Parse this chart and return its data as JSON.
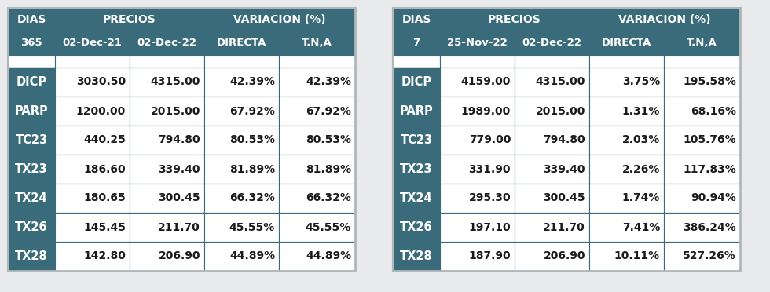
{
  "table1": {
    "header2": [
      "365",
      "02-Dec-21",
      "02-Dec-22",
      "DIRECTA",
      "T.N,A"
    ],
    "col_labels": [
      "DICP",
      "PARP",
      "TC23",
      "TX23",
      "TX24",
      "TX26",
      "TX28"
    ],
    "col1": [
      "3030.50",
      "1200.00",
      "440.25",
      "186.60",
      "180.65",
      "145.45",
      "142.80"
    ],
    "col2": [
      "4315.00",
      "2015.00",
      "794.80",
      "339.40",
      "300.45",
      "211.70",
      "206.90"
    ],
    "col3": [
      "42.39%",
      "67.92%",
      "80.53%",
      "81.89%",
      "66.32%",
      "45.55%",
      "44.89%"
    ],
    "col4": [
      "42.39%",
      "67.92%",
      "80.53%",
      "81.89%",
      "66.32%",
      "45.55%",
      "44.89%"
    ]
  },
  "table2": {
    "header2": [
      "7",
      "25-Nov-22",
      "02-Dec-22",
      "DIRECTA",
      "T.N,A"
    ],
    "col_labels": [
      "DICP",
      "PARP",
      "TC23",
      "TX23",
      "TX24",
      "TX26",
      "TX28"
    ],
    "col1": [
      "4159.00",
      "1989.00",
      "779.00",
      "331.90",
      "295.30",
      "197.10",
      "187.90"
    ],
    "col2": [
      "4315.00",
      "2015.00",
      "794.80",
      "339.40",
      "300.45",
      "211.70",
      "206.90"
    ],
    "col3": [
      "3.75%",
      "1.31%",
      "2.03%",
      "2.26%",
      "1.74%",
      "7.41%",
      "10.11%"
    ],
    "col4": [
      "195.58%",
      "68.16%",
      "105.76%",
      "117.83%",
      "90.94%",
      "386.24%",
      "527.26%"
    ]
  },
  "header_bg": "#3a6b7a",
  "header_text": "#ffffff",
  "label_bg": "#3a6b7a",
  "label_text": "#ffffff",
  "data_bg": "#ffffff",
  "data_text": "#1a1a1a",
  "border_color": "#3a6b7a",
  "outer_border": "#b0b8bc",
  "fig_bg": "#e8eaeb",
  "table_bg": "#ffffff"
}
